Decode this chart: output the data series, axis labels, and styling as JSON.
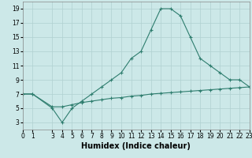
{
  "xlabel": "Humidex (Indice chaleur)",
  "background_color": "#cce8e8",
  "grid_color": "#b0d0d0",
  "line_color": "#2e7d6e",
  "curve1_x": [
    0,
    1,
    3,
    4,
    5,
    6,
    7,
    8,
    9,
    10,
    11,
    12,
    13,
    14,
    15,
    16,
    17,
    18,
    19,
    20,
    21,
    22,
    23
  ],
  "curve1_y": [
    7,
    7,
    5,
    3,
    5,
    6,
    7,
    8,
    9,
    10,
    12,
    13,
    16,
    19,
    19,
    18,
    15,
    12,
    11,
    10,
    9,
    9,
    8
  ],
  "curve2_x": [
    0,
    1,
    3,
    4,
    5,
    6,
    7,
    8,
    9,
    10,
    11,
    12,
    13,
    14,
    15,
    16,
    17,
    18,
    19,
    20,
    21,
    22,
    23
  ],
  "curve2_y": [
    7,
    7,
    5.2,
    5.2,
    5.5,
    5.8,
    6.0,
    6.2,
    6.4,
    6.5,
    6.7,
    6.8,
    7.0,
    7.1,
    7.2,
    7.3,
    7.4,
    7.5,
    7.6,
    7.7,
    7.8,
    7.9,
    8.0
  ],
  "ylim": [
    2,
    20
  ],
  "yticks": [
    3,
    5,
    7,
    9,
    11,
    13,
    15,
    17,
    19
  ],
  "xticks": [
    0,
    1,
    3,
    4,
    5,
    6,
    7,
    8,
    9,
    10,
    11,
    12,
    13,
    14,
    15,
    16,
    17,
    18,
    19,
    20,
    21,
    22,
    23
  ],
  "xlim": [
    0,
    23
  ],
  "marker": "+",
  "markersize": 3,
  "linewidth": 0.8,
  "xlabel_fontsize": 7,
  "tick_fontsize": 5.5
}
